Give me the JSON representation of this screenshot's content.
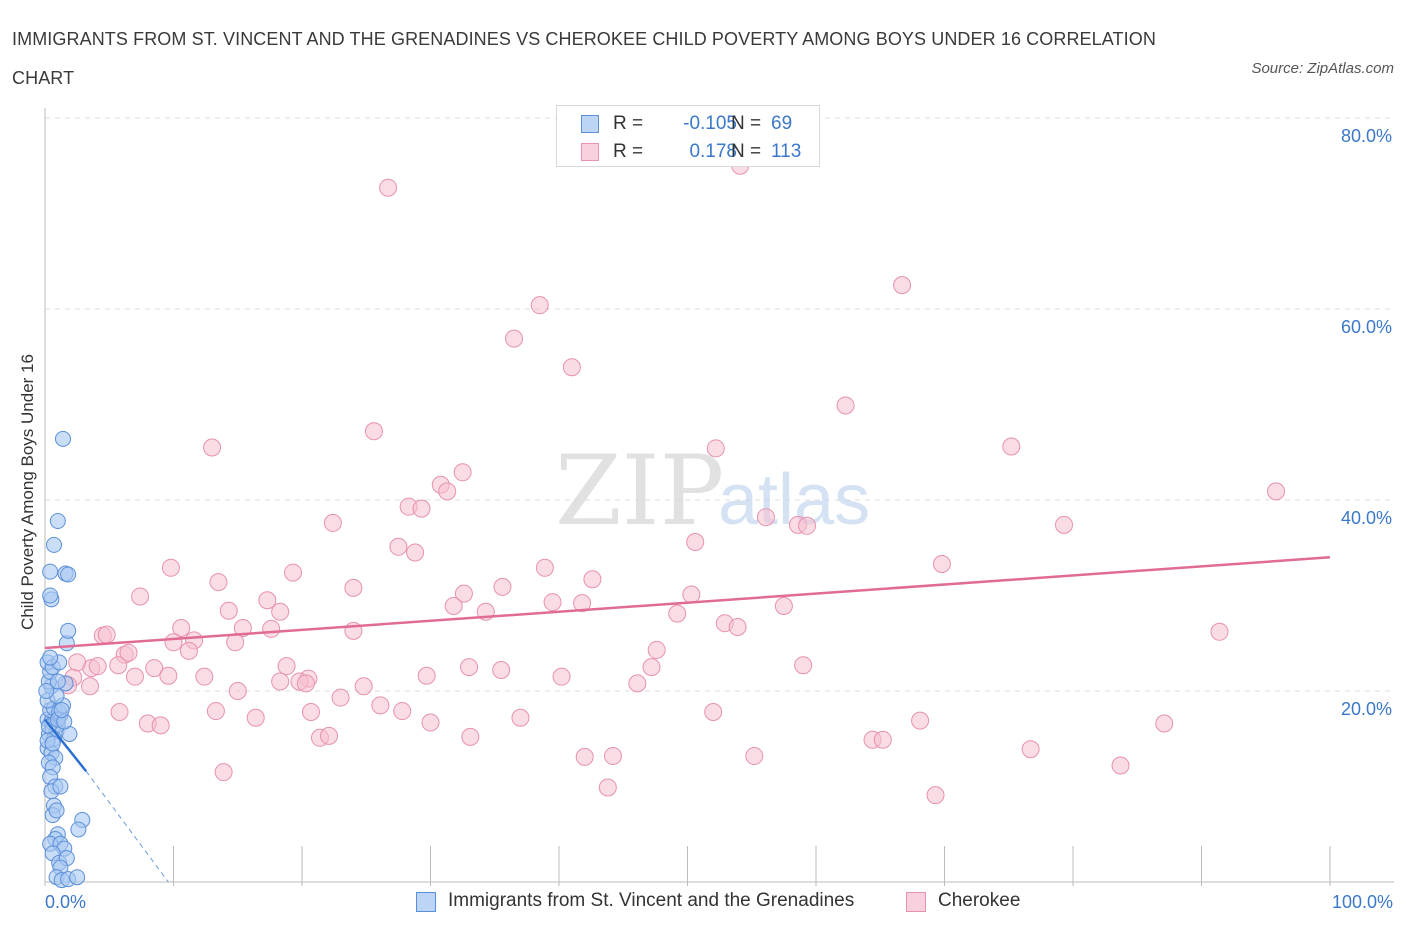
{
  "title": "IMMIGRANTS FROM ST. VINCENT AND THE GRENADINES VS CHEROKEE CHILD POVERTY AMONG BOYS UNDER 16 CORRELATION CHART",
  "source": "Source: ZipAtlas.com",
  "watermark": {
    "zip": "ZIP",
    "atlas": "atlas"
  },
  "legend": {
    "r_label": "R =",
    "n_label": "N =",
    "series": [
      {
        "r": "-0.105",
        "n": "69"
      },
      {
        "r": "0.178",
        "n": "113"
      }
    ]
  },
  "colors": {
    "blue_fill": "#a9c8f2",
    "blue_stroke": "#5b8fd9",
    "blue_line": "#2c6fd1",
    "pink_fill": "#f6bfd0",
    "pink_stroke": "#e792ae",
    "pink_line": "#e06b93",
    "tick_label": "#3b78c9",
    "grid": "#dddddd"
  },
  "chart_data": {
    "type": "scatter",
    "title": "IMMIGRANTS FROM ST. VINCENT AND THE GRENADINES VS CHEROKEE CHILD POVERTY AMONG BOYS UNDER 16 CORRELATION CHART",
    "xlabel": "",
    "ylabel": "Child Poverty Among Boys Under 16",
    "xlim": [
      0,
      100
    ],
    "ylim": [
      0,
      80
    ],
    "x_tick_labels": [
      "0.0%",
      "100.0%"
    ],
    "y_ticks": [
      20,
      40,
      60,
      80
    ],
    "y_tick_labels": [
      "20.0%",
      "40.0%",
      "60.0%",
      "80.0%"
    ],
    "grid": true,
    "legend_position": "bottom",
    "series": [
      {
        "name": "Immigrants from St. Vincent and the Grenadines",
        "color": "#a9c8f2",
        "trend": {
          "x": [
            0,
            3.2
          ],
          "y": [
            17.0,
            11.6
          ],
          "dashed_extension": {
            "x": [
              3.2,
              9.6
            ],
            "y": [
              11.6,
              0.0
            ]
          }
        },
        "points": [
          [
            0.2,
            17.0
          ],
          [
            0.5,
            16.8
          ],
          [
            0.8,
            17.2
          ],
          [
            1.0,
            16.5
          ],
          [
            1.2,
            17.5
          ],
          [
            0.3,
            15.5
          ],
          [
            0.6,
            16.0
          ],
          [
            0.9,
            15.8
          ],
          [
            0.4,
            18.0
          ],
          [
            0.7,
            18.2
          ],
          [
            1.1,
            17.8
          ],
          [
            1.4,
            18.5
          ],
          [
            0.2,
            19.0
          ],
          [
            0.5,
            20.5
          ],
          [
            0.3,
            21.0
          ],
          [
            1.6,
            20.8
          ],
          [
            0.4,
            22.0
          ],
          [
            0.2,
            23.0
          ],
          [
            0.6,
            22.5
          ],
          [
            1.1,
            23.0
          ],
          [
            1.7,
            25.0
          ],
          [
            1.8,
            26.3
          ],
          [
            0.5,
            29.6
          ],
          [
            0.4,
            30.0
          ],
          [
            0.4,
            32.5
          ],
          [
            1.6,
            32.3
          ],
          [
            1.8,
            32.2
          ],
          [
            0.7,
            35.3
          ],
          [
            1.0,
            37.8
          ],
          [
            1.4,
            46.4
          ],
          [
            0.2,
            14.0
          ],
          [
            0.5,
            13.5
          ],
          [
            0.8,
            13.0
          ],
          [
            0.3,
            12.5
          ],
          [
            0.6,
            12.0
          ],
          [
            0.4,
            11.0
          ],
          [
            0.8,
            10.0
          ],
          [
            0.5,
            9.5
          ],
          [
            1.2,
            10.0
          ],
          [
            0.7,
            8.0
          ],
          [
            0.6,
            7.0
          ],
          [
            0.9,
            7.5
          ],
          [
            2.9,
            6.5
          ],
          [
            2.6,
            5.5
          ],
          [
            1.0,
            5.0
          ],
          [
            0.8,
            4.5
          ],
          [
            0.4,
            4.0
          ],
          [
            1.2,
            4.0
          ],
          [
            1.5,
            3.5
          ],
          [
            0.6,
            3.0
          ],
          [
            1.1,
            2.0
          ],
          [
            1.7,
            2.5
          ],
          [
            1.2,
            1.5
          ],
          [
            0.9,
            0.5
          ],
          [
            1.3,
            0.2
          ],
          [
            1.8,
            0.3
          ],
          [
            2.5,
            0.5
          ],
          [
            0.3,
            16.3
          ],
          [
            0.7,
            15.0
          ],
          [
            1.9,
            15.5
          ],
          [
            1.0,
            17.0
          ],
          [
            1.5,
            16.8
          ],
          [
            0.2,
            14.8
          ],
          [
            0.6,
            14.5
          ],
          [
            1.3,
            18.0
          ],
          [
            0.9,
            19.5
          ],
          [
            1.0,
            21.0
          ],
          [
            0.4,
            23.5
          ],
          [
            0.1,
            20.0
          ]
        ]
      },
      {
        "name": "Cherokee",
        "color": "#f6bfd0",
        "trend": {
          "x": [
            0,
            100
          ],
          "y": [
            24.5,
            34.0
          ]
        },
        "points": [
          [
            26.7,
            72.7
          ],
          [
            54.1,
            75.0
          ],
          [
            66.7,
            62.5
          ],
          [
            38.5,
            60.4
          ],
          [
            36.5,
            56.9
          ],
          [
            41.0,
            53.9
          ],
          [
            62.3,
            49.9
          ],
          [
            25.6,
            47.2
          ],
          [
            13.0,
            45.5
          ],
          [
            52.2,
            45.4
          ],
          [
            75.2,
            45.6
          ],
          [
            32.5,
            42.9
          ],
          [
            30.8,
            41.6
          ],
          [
            31.3,
            40.9
          ],
          [
            28.3,
            39.3
          ],
          [
            29.3,
            39.1
          ],
          [
            56.1,
            38.2
          ],
          [
            58.6,
            37.4
          ],
          [
            59.3,
            37.3
          ],
          [
            22.4,
            37.6
          ],
          [
            79.3,
            37.4
          ],
          [
            95.8,
            40.9
          ],
          [
            50.6,
            35.6
          ],
          [
            27.5,
            35.1
          ],
          [
            28.8,
            34.5
          ],
          [
            38.9,
            32.9
          ],
          [
            69.8,
            33.3
          ],
          [
            9.8,
            32.9
          ],
          [
            19.3,
            32.4
          ],
          [
            42.6,
            31.7
          ],
          [
            13.5,
            31.4
          ],
          [
            35.6,
            30.9
          ],
          [
            24.0,
            30.8
          ],
          [
            32.6,
            30.2
          ],
          [
            50.3,
            30.1
          ],
          [
            7.4,
            29.9
          ],
          [
            17.3,
            29.5
          ],
          [
            39.5,
            29.3
          ],
          [
            41.8,
            29.2
          ],
          [
            31.8,
            28.9
          ],
          [
            57.5,
            28.9
          ],
          [
            14.3,
            28.4
          ],
          [
            18.3,
            28.3
          ],
          [
            34.3,
            28.3
          ],
          [
            49.2,
            28.1
          ],
          [
            10.6,
            26.6
          ],
          [
            17.6,
            26.5
          ],
          [
            15.4,
            26.6
          ],
          [
            24.0,
            26.3
          ],
          [
            52.9,
            27.1
          ],
          [
            53.9,
            26.7
          ],
          [
            4.5,
            25.8
          ],
          [
            4.8,
            25.9
          ],
          [
            10.0,
            25.1
          ],
          [
            11.6,
            25.3
          ],
          [
            14.8,
            25.1
          ],
          [
            11.2,
            24.2
          ],
          [
            47.6,
            24.3
          ],
          [
            6.2,
            23.8
          ],
          [
            91.4,
            26.2
          ],
          [
            8.5,
            22.4
          ],
          [
            5.7,
            22.7
          ],
          [
            3.6,
            22.4
          ],
          [
            4.1,
            22.6
          ],
          [
            18.8,
            22.6
          ],
          [
            33.0,
            22.5
          ],
          [
            35.5,
            22.2
          ],
          [
            47.2,
            22.5
          ],
          [
            59.0,
            22.7
          ],
          [
            2.2,
            21.4
          ],
          [
            12.4,
            21.5
          ],
          [
            20.5,
            21.3
          ],
          [
            29.7,
            21.6
          ],
          [
            40.2,
            21.5
          ],
          [
            1.8,
            20.6
          ],
          [
            7.0,
            21.5
          ],
          [
            9.6,
            21.6
          ],
          [
            18.3,
            21.0
          ],
          [
            19.8,
            21.0
          ],
          [
            20.3,
            20.8
          ],
          [
            24.8,
            20.5
          ],
          [
            46.1,
            20.8
          ],
          [
            15.0,
            20.0
          ],
          [
            23.0,
            19.3
          ],
          [
            26.1,
            18.5
          ],
          [
            13.3,
            17.9
          ],
          [
            20.7,
            17.8
          ],
          [
            27.8,
            17.9
          ],
          [
            5.8,
            17.8
          ],
          [
            52.0,
            17.8
          ],
          [
            16.4,
            17.2
          ],
          [
            8.0,
            16.6
          ],
          [
            9.0,
            16.4
          ],
          [
            30.0,
            16.7
          ],
          [
            37.0,
            17.2
          ],
          [
            68.1,
            16.9
          ],
          [
            87.1,
            16.6
          ],
          [
            21.4,
            15.1
          ],
          [
            22.1,
            15.3
          ],
          [
            33.1,
            15.2
          ],
          [
            64.4,
            14.9
          ],
          [
            65.2,
            14.9
          ],
          [
            76.7,
            13.9
          ],
          [
            42.0,
            13.1
          ],
          [
            44.2,
            13.2
          ],
          [
            55.2,
            13.2
          ],
          [
            83.7,
            12.2
          ],
          [
            13.9,
            11.5
          ],
          [
            43.8,
            9.9
          ],
          [
            69.3,
            9.1
          ],
          [
            2.5,
            23.0
          ],
          [
            3.5,
            20.5
          ],
          [
            6.5,
            24.0
          ]
        ]
      }
    ]
  },
  "bottom_legend": [
    {
      "label": "Immigrants from St. Vincent and the Grenadines"
    },
    {
      "label": "Cherokee"
    }
  ]
}
